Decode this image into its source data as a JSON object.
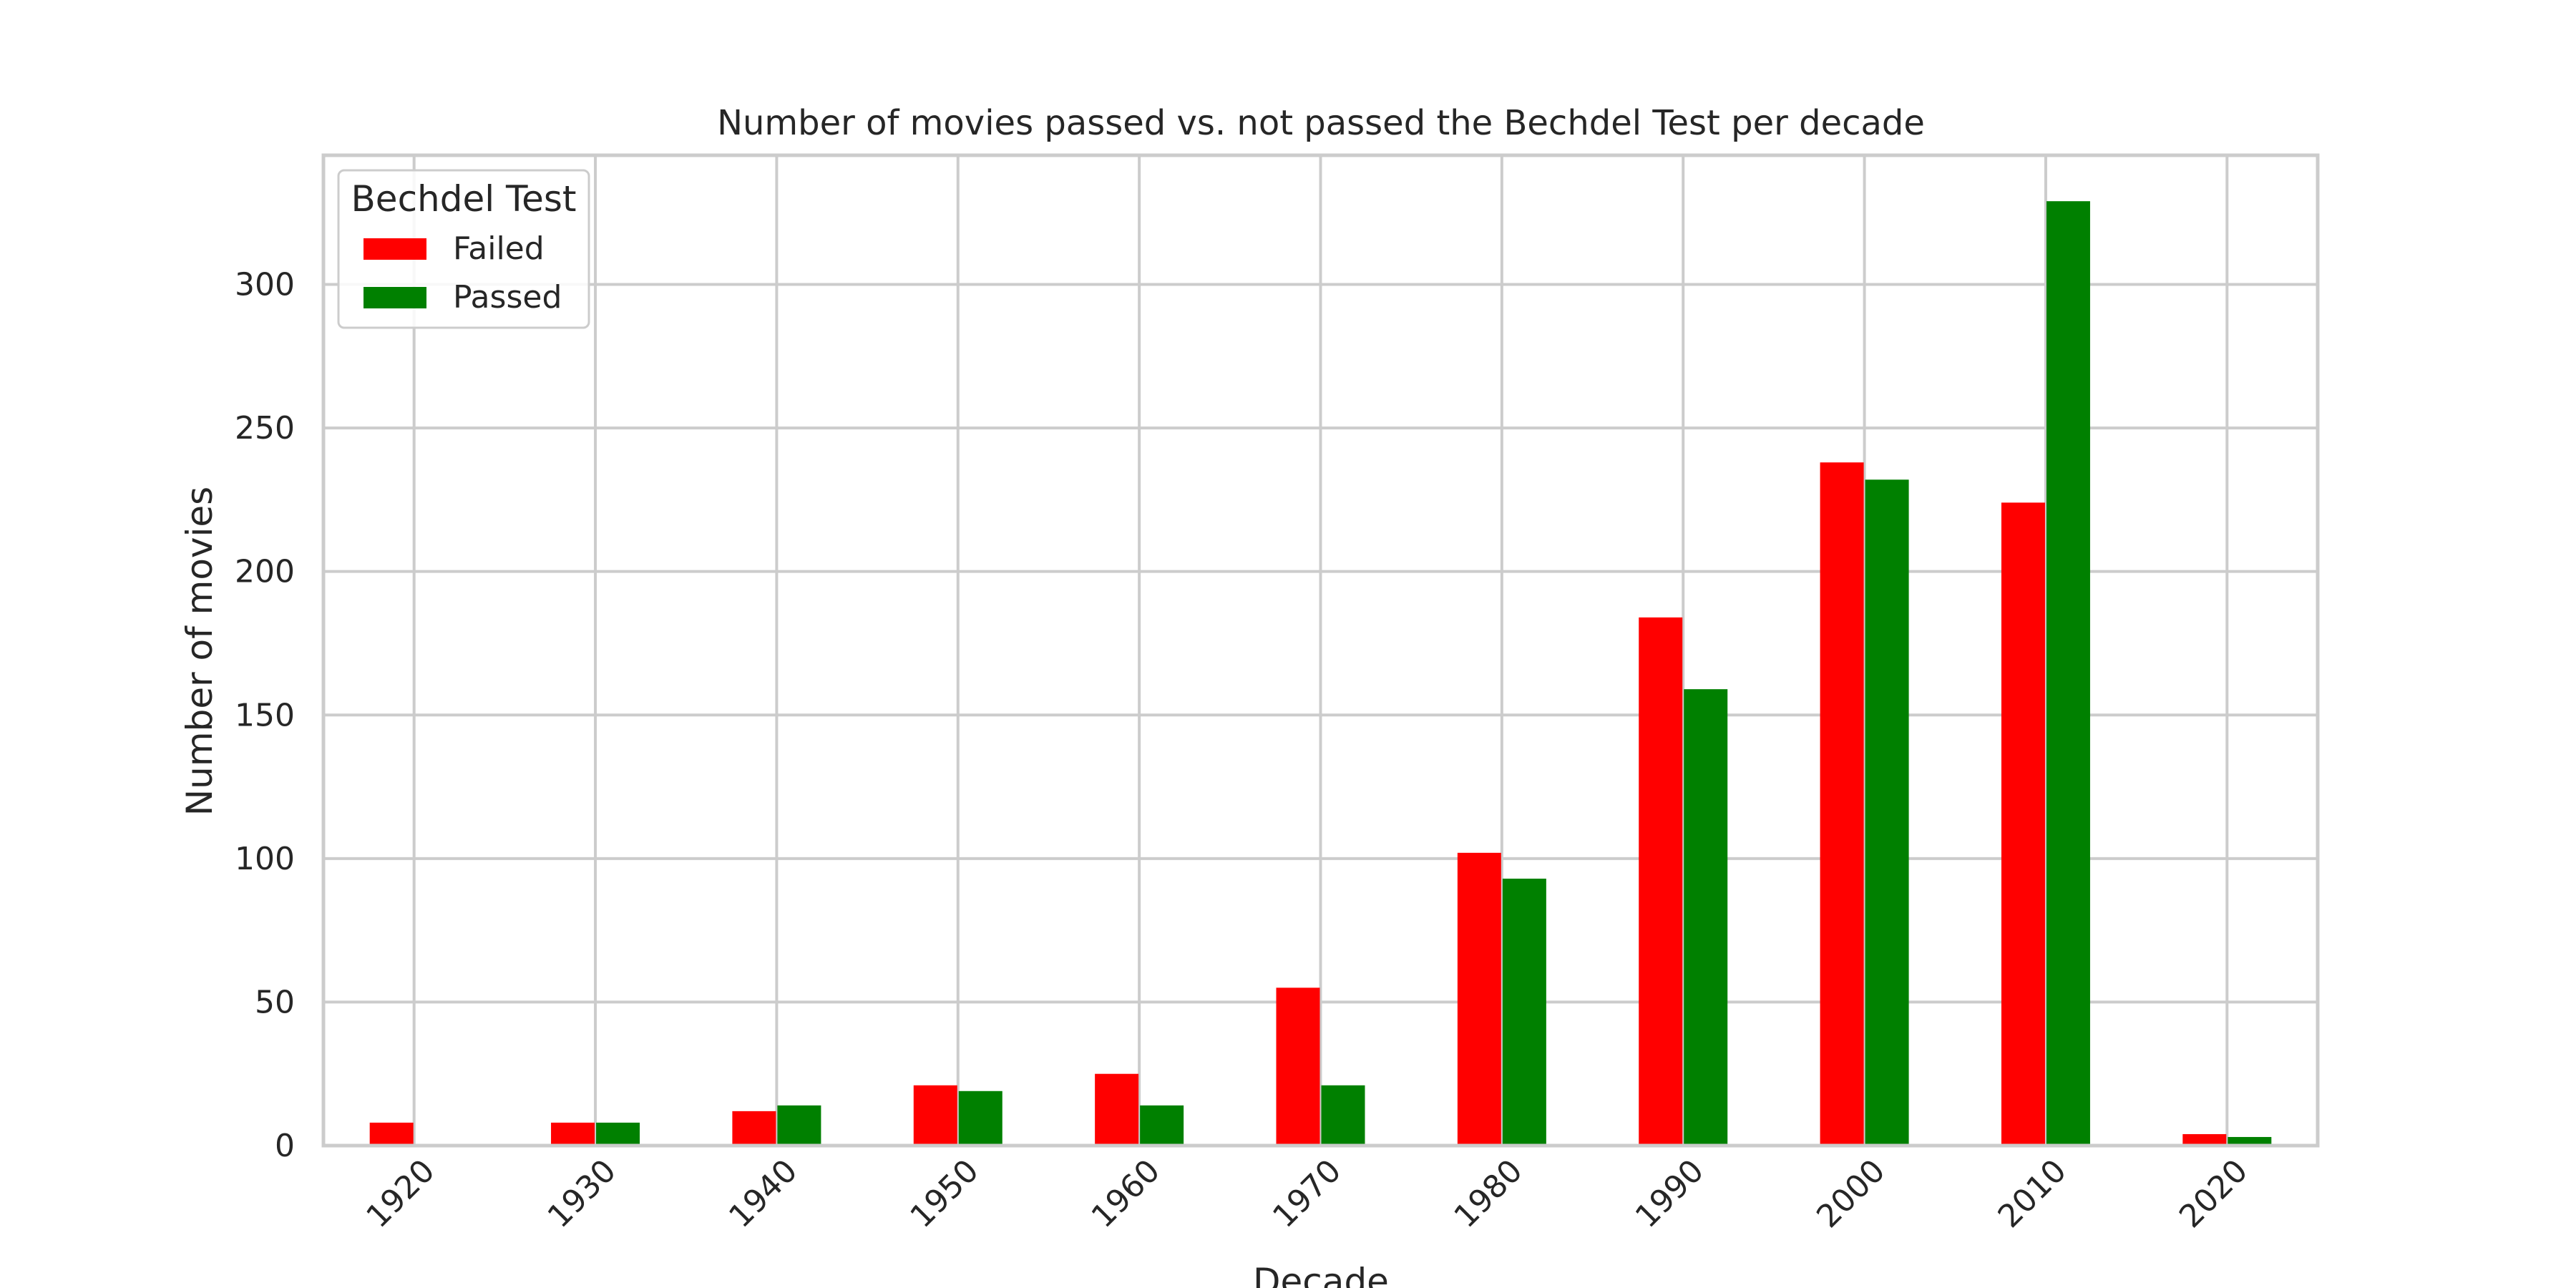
{
  "chart_data": {
    "type": "bar",
    "title": "Number of movies passed vs. not passed the Bechdel Test per decade",
    "xlabel": "Decade",
    "ylabel": "Number of movies",
    "categories": [
      "1920",
      "1930",
      "1940",
      "1950",
      "1960",
      "1970",
      "1980",
      "1990",
      "2000",
      "2010",
      "2020"
    ],
    "series": [
      {
        "name": "Failed",
        "color": "#ff0000",
        "values": [
          8,
          8,
          12,
          21,
          25,
          55,
          102,
          184,
          238,
          224,
          4
        ]
      },
      {
        "name": "Passed",
        "color": "#008000",
        "values": [
          0,
          8,
          14,
          19,
          14,
          21,
          93,
          159,
          232,
          329,
          3
        ]
      }
    ],
    "ylim": [
      0,
      345
    ],
    "yticks": [
      0,
      50,
      100,
      150,
      200,
      250,
      300
    ],
    "grid": true,
    "legend": {
      "title": "Bechdel Test",
      "placement": "top-left"
    }
  }
}
